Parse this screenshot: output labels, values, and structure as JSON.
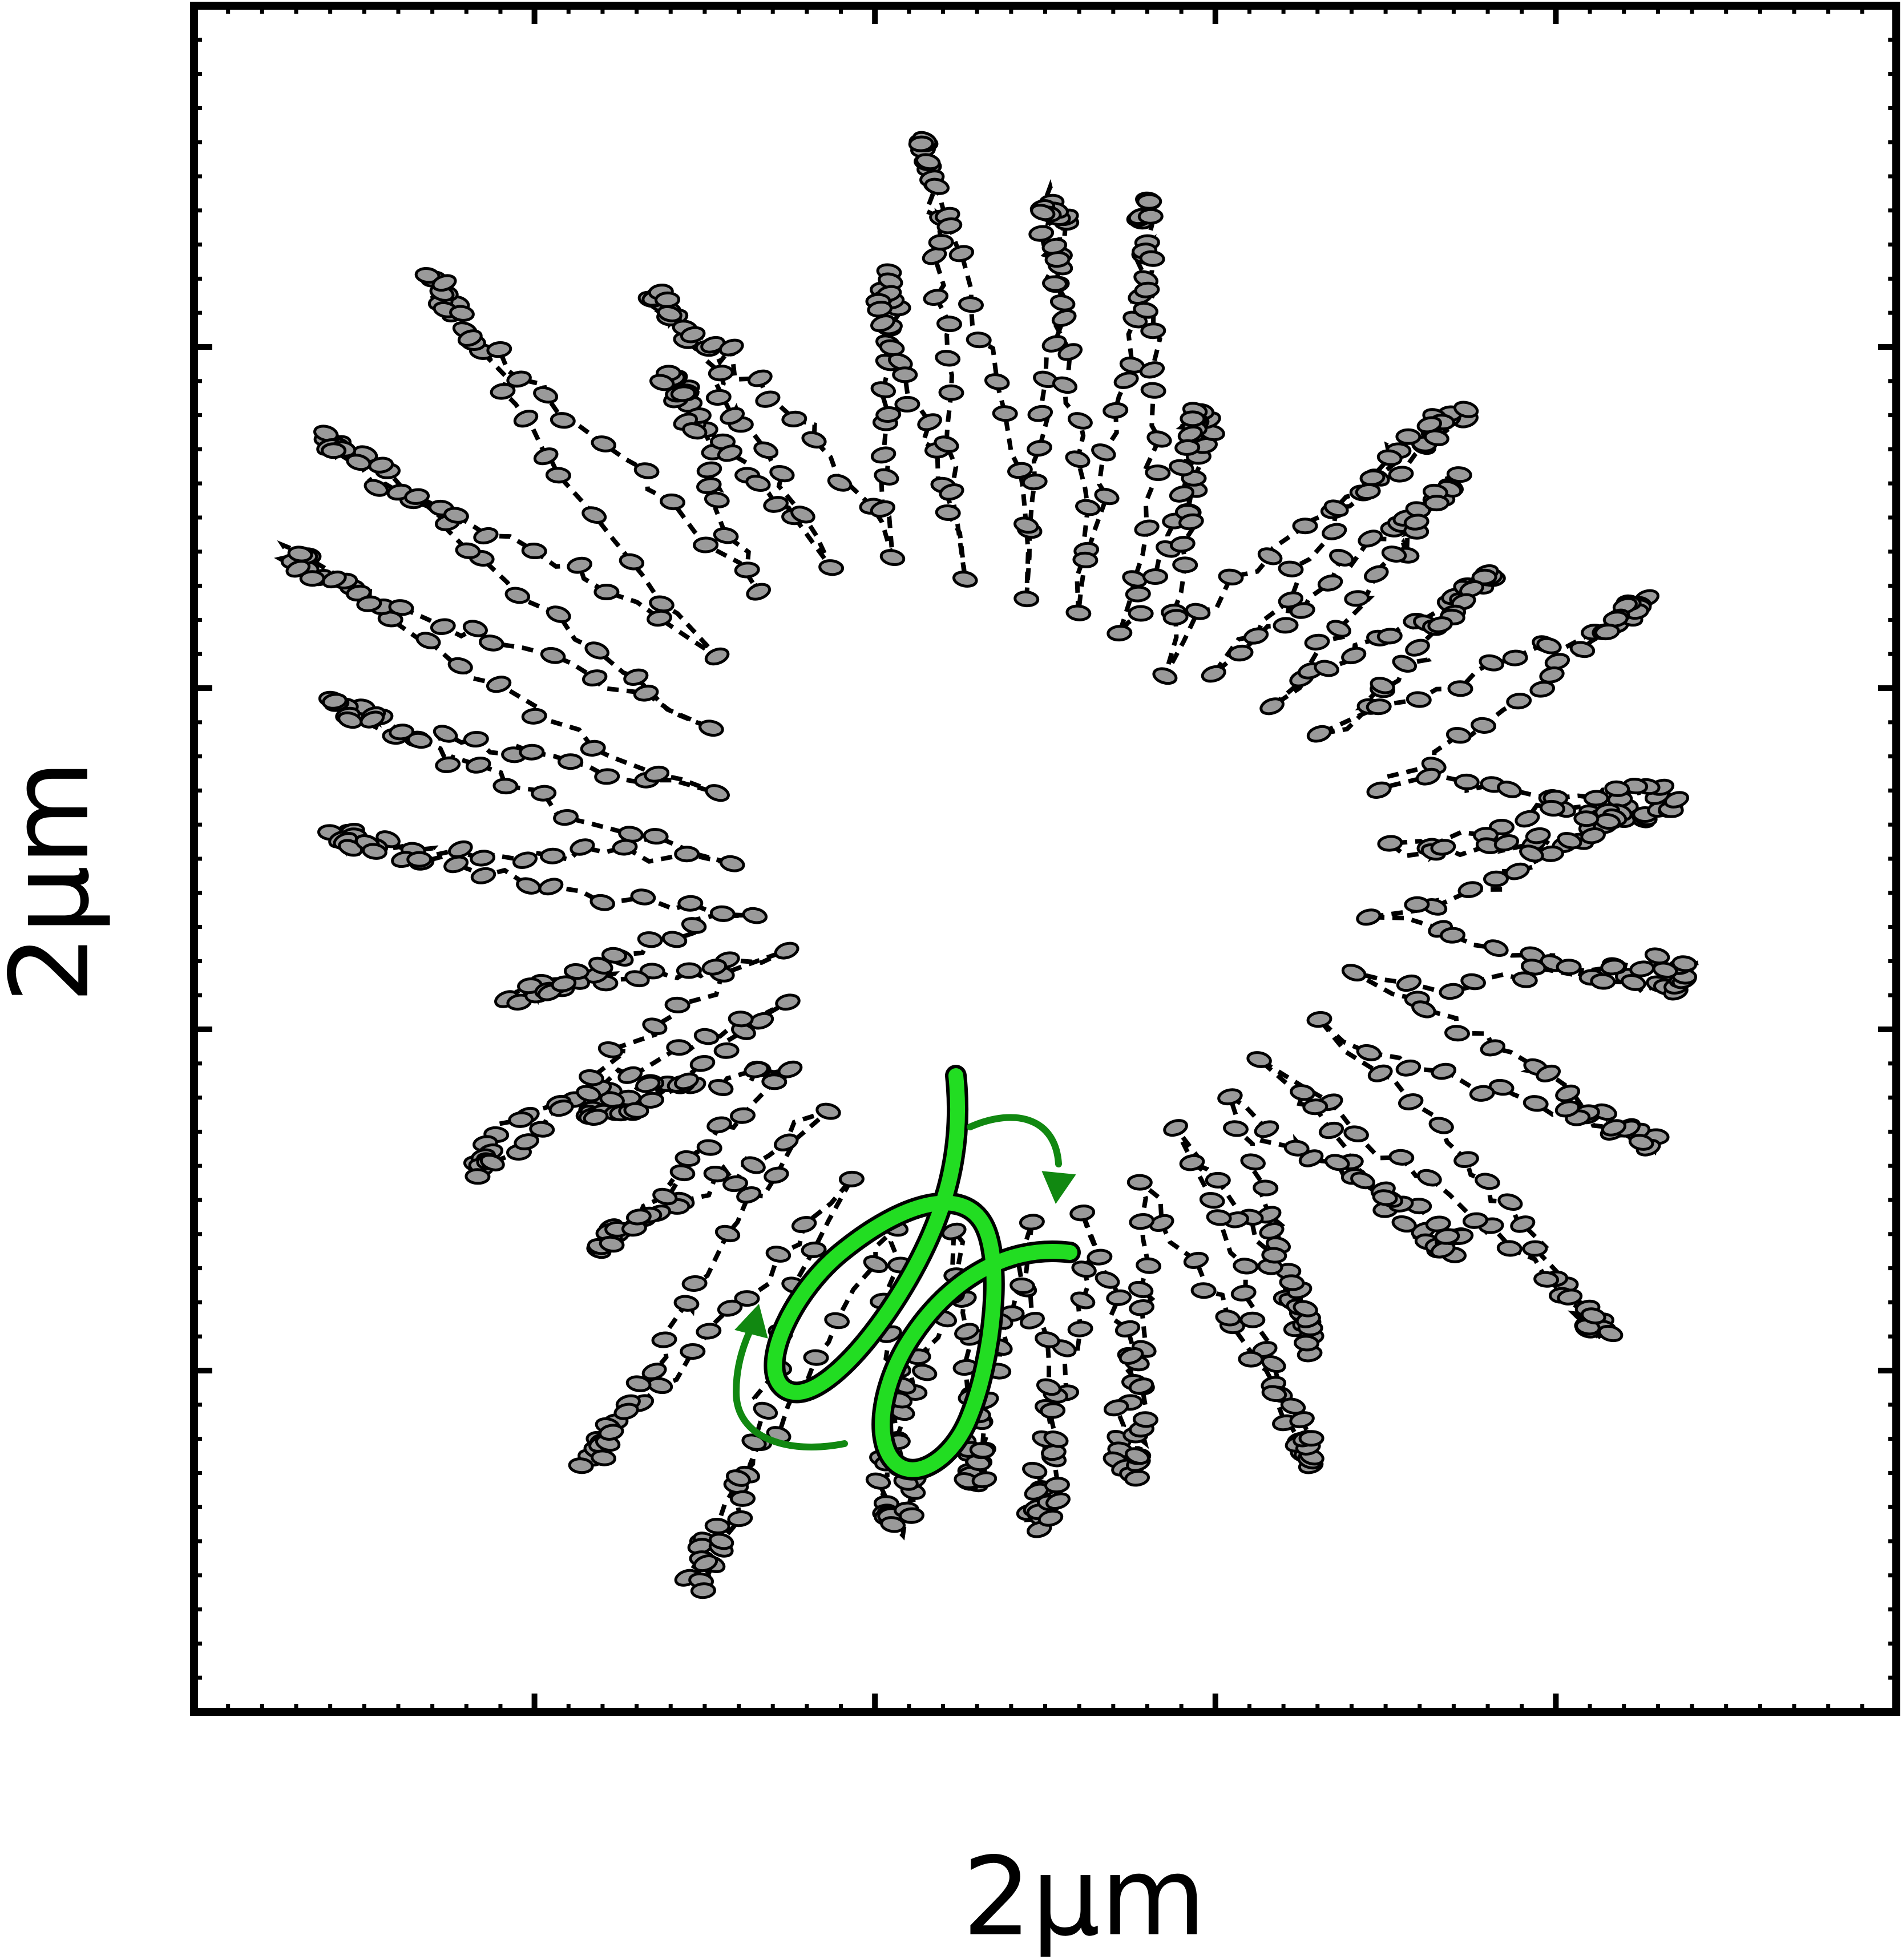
{
  "figure": {
    "x_axis_label": "2μm",
    "y_axis_label": "2μm",
    "bead_fill_color": "#9a9a9a",
    "bead_stroke_color": "#000000",
    "link_color": "#000000",
    "highlight_color": "#22dd22",
    "highlight_outline_color": "#000000",
    "arrow_color": "#118811",
    "icons": [
      "chromatin-bead-icon",
      "rotation-arrow-icon"
    ]
  }
}
